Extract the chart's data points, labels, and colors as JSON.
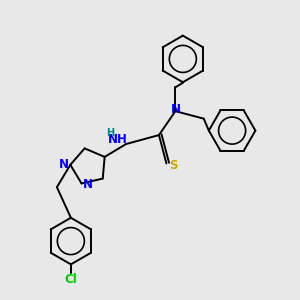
{
  "background_color": "#e8e8e8",
  "bond_color": "#000000",
  "atom_colors": {
    "N": "#0000ff",
    "S": "#ccaa00",
    "Cl": "#00cc00",
    "H": "#008888",
    "C": "#000000"
  },
  "figsize": [
    3.0,
    3.0
  ],
  "dpi": 100,
  "lw": 1.4,
  "fs": 8.5
}
